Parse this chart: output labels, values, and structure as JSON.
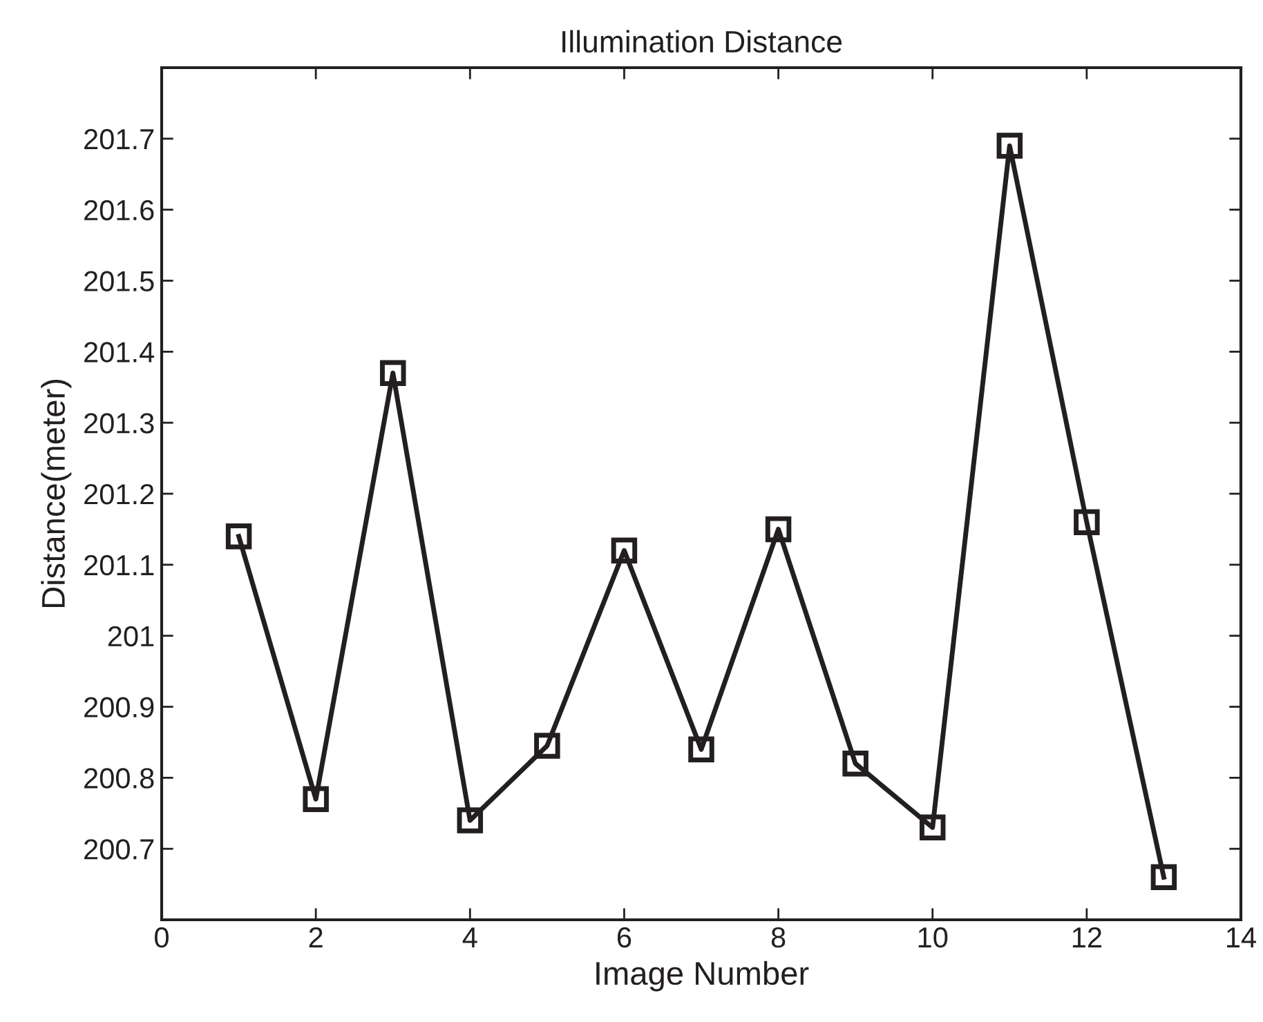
{
  "chart_data": {
    "type": "line",
    "title": "Illumination Distance",
    "xlabel": "Image Number",
    "ylabel": "Distance(meter)",
    "x": [
      1,
      2,
      3,
      4,
      5,
      6,
      7,
      8,
      9,
      10,
      11,
      12,
      13
    ],
    "series": [
      {
        "color": "#231f20",
        "values": [
          201.14,
          200.77,
          201.37,
          200.74,
          200.845,
          201.12,
          200.84,
          201.15,
          200.82,
          200.73,
          201.69,
          201.16,
          200.66
        ]
      }
    ],
    "xlim": [
      0,
      14
    ],
    "xticks": [
      0,
      2,
      4,
      6,
      8,
      10,
      12,
      14
    ],
    "ylim": [
      200.6,
      201.8
    ],
    "yticks": [
      200.7,
      200.8,
      200.9,
      {
        "value": 201,
        "label": "201"
      },
      201.1,
      201.2,
      201.3,
      201.4,
      201.5,
      201.6,
      201.7
    ],
    "marker": "square",
    "line_style": "solid",
    "grid": false,
    "legend": false
  }
}
